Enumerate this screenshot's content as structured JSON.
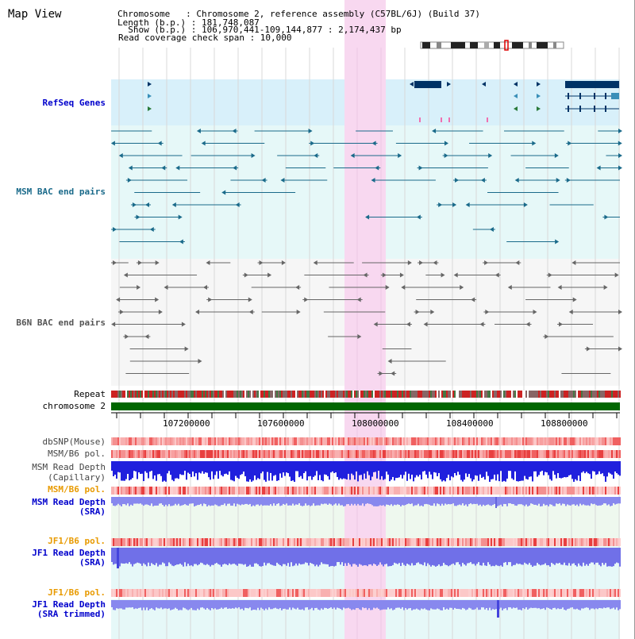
{
  "header": {
    "title": "Map View",
    "chromosome_line": "Chromosome   : Chromosome 2, reference assembly (C57BL/6J) (Build 37)",
    "length_line": "Length (b.p.) : 181,748,087",
    "show_line": "  Show (b.p.) : 106,970,441-109,144,877 : 2,174,437 bp",
    "coverage_line": "Read coverage check span : 10,000"
  },
  "tracks": {
    "refseq": "RefSeq Genes",
    "msm_bac": "MSM BAC end pairs",
    "b6n_bac": "B6N BAC end pairs",
    "repeat": "Repeat",
    "chromosome": "chromosome 2",
    "dbsnp": "dbSNP(Mouse)",
    "msm_b6_pol_1": "MSM/B6 pol.",
    "msm_read_depth_cap_1": "MSM Read Depth",
    "msm_read_depth_cap_2": "(Capillary)",
    "msm_b6_pol_2": "MSM/B6 pol.",
    "msm_read_depth_sra_1": "MSM Read Depth",
    "msm_read_depth_sra_2": "(SRA)",
    "jf1_b6_pol_1": "JF1/B6 pol.",
    "jf1_read_depth_sra_1": "JF1 Read Depth",
    "jf1_read_depth_sra_2": "(SRA)",
    "jf1_b6_pol_2": "JF1/B6 pol.",
    "jf1_read_depth_trim_1": "JF1 Read Depth",
    "jf1_read_depth_trim_2": "(SRA trimmed)"
  },
  "axis": {
    "ticks": [
      "107200000",
      "107600000",
      "108000000",
      "108400000",
      "108800000"
    ]
  },
  "colors": {
    "refseq_label": "#0000cc",
    "msm_label": "#1a6a8a",
    "b6n_label": "#555555",
    "orange_label": "#e89a00",
    "blue_label": "#0000cc",
    "highlight": "#f8d8f0",
    "chrom_bar": "#006600"
  }
}
